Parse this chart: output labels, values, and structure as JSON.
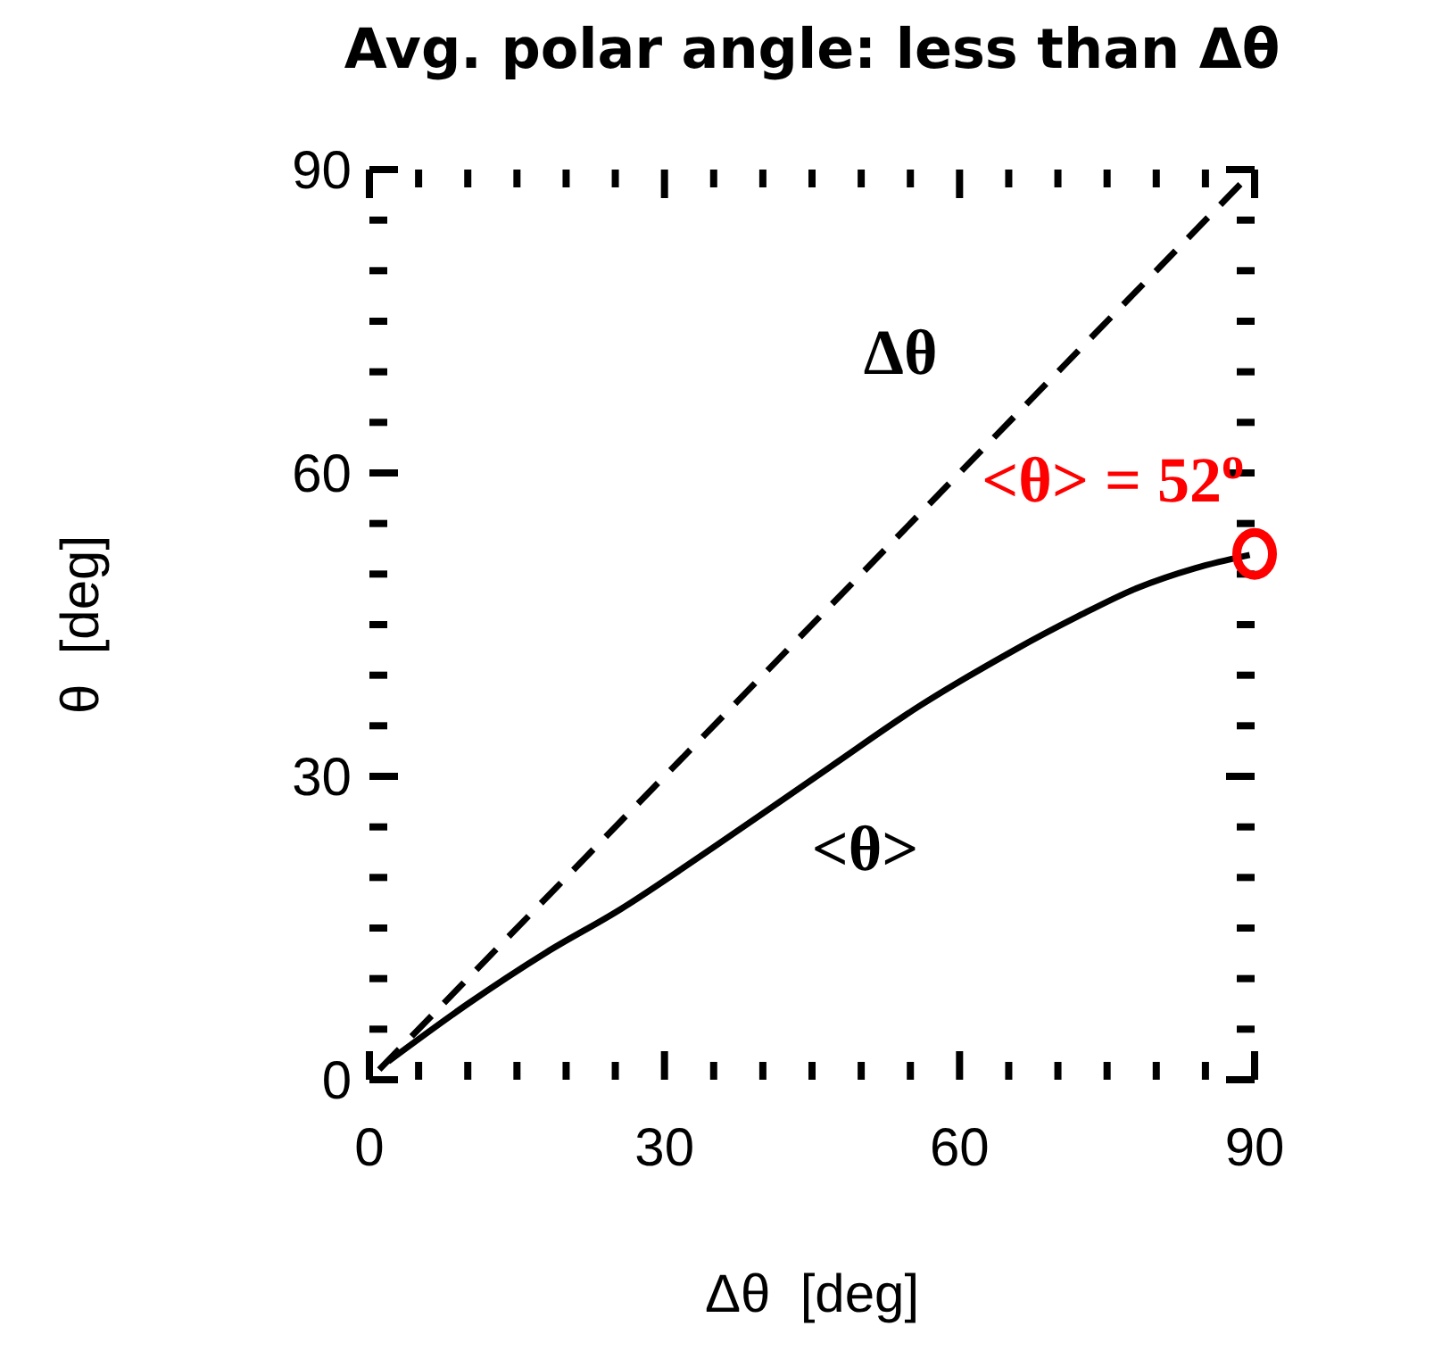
{
  "chart_data": {
    "type": "line",
    "title": "Avg. polar angle: less than Δθ",
    "xlabel": "Δθ  [deg]",
    "ylabel": "θ  [deg]",
    "xlim": [
      0,
      90
    ],
    "ylim": [
      0,
      90
    ],
    "xticks": [
      0,
      {
        "value": 5,
        "label": null
      },
      {
        "value": 10,
        "label": null
      },
      {
        "value": 15,
        "label": null
      },
      {
        "value": 20,
        "label": null
      },
      {
        "value": 25,
        "label": null
      },
      30,
      {
        "value": 35,
        "label": null
      },
      {
        "value": 40,
        "label": null
      },
      {
        "value": 45,
        "label": null
      },
      {
        "value": 50,
        "label": null
      },
      {
        "value": 55,
        "label": null
      },
      60,
      {
        "value": 65,
        "label": null
      },
      {
        "value": 70,
        "label": null
      },
      {
        "value": 75,
        "label": null
      },
      {
        "value": 80,
        "label": null
      },
      {
        "value": 85,
        "label": null
      },
      90
    ],
    "yticks": [
      0,
      {
        "value": 5,
        "label": null
      },
      {
        "value": 10,
        "label": null
      },
      {
        "value": 15,
        "label": null
      },
      {
        "value": 20,
        "label": null
      },
      {
        "value": 25,
        "label": null
      },
      30,
      {
        "value": 35,
        "label": null
      },
      {
        "value": 40,
        "label": null
      },
      {
        "value": 45,
        "label": null
      },
      {
        "value": 50,
        "label": null
      },
      {
        "value": 55,
        "label": null
      },
      60,
      {
        "value": 65,
        "label": null
      },
      {
        "value": 70,
        "label": null
      },
      {
        "value": 75,
        "label": null
      },
      {
        "value": 80,
        "label": null
      },
      {
        "value": 85,
        "label": null
      },
      90
    ],
    "grid": false,
    "marker": "none",
    "series": [
      {
        "type": "line",
        "color": "#000000",
        "line_style": "dashed",
        "x": [
          1,
          90
        ],
        "values": [
          1,
          90
        ]
      },
      {
        "type": "line",
        "color": "#000000",
        "line_style": "solid",
        "x": [
          1.9,
          10,
          18,
          25.6,
          35,
          46.8,
          56,
          65.6,
          72,
          78,
          84,
          89.5
        ],
        "values": [
          1.8,
          7.5,
          12.6,
          16.9,
          23,
          30.9,
          37,
          42.5,
          45.8,
          48.6,
          50.6,
          51.9
        ]
      },
      {
        "type": "scatter",
        "color": "#ff0000",
        "marker": "circle",
        "x": [
          90
        ],
        "values": [
          52
        ]
      }
    ],
    "annotations": [
      "Δθ",
      "<θ>",
      "<θ> = 52$^{o}$"
    ]
  }
}
